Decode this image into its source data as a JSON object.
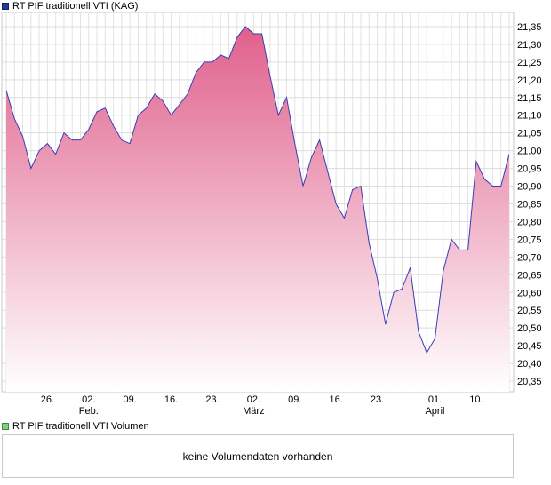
{
  "chart_data": {
    "type": "area",
    "title": "RT PIF traditionell VTI (KAG)",
    "ylim": [
      20.32,
      21.39
    ],
    "y_ticks": [
      "21,35",
      "21,30",
      "21,25",
      "21,20",
      "21,15",
      "21,10",
      "21,05",
      "21,00",
      "20,95",
      "20,90",
      "20,85",
      "20,80",
      "20,75",
      "20,70",
      "20,65",
      "20,60",
      "20,55",
      "20,50",
      "20,45",
      "20,40",
      "20,35"
    ],
    "x_ticks": [
      {
        "day": "26.",
        "month": "",
        "index": 5
      },
      {
        "day": "02.",
        "month": "Feb.",
        "index": 10
      },
      {
        "day": "09.",
        "month": "",
        "index": 15
      },
      {
        "day": "16.",
        "month": "",
        "index": 20
      },
      {
        "day": "23.",
        "month": "",
        "index": 25
      },
      {
        "day": "02.",
        "month": "März",
        "index": 30
      },
      {
        "day": "09.",
        "month": "",
        "index": 35
      },
      {
        "day": "16.",
        "month": "",
        "index": 40
      },
      {
        "day": "23.",
        "month": "",
        "index": 45
      },
      {
        "day": "01.",
        "month": "April",
        "index": 52
      },
      {
        "day": "10.",
        "month": "",
        "index": 57
      }
    ],
    "values": [
      21.17,
      21.09,
      21.04,
      20.95,
      21.0,
      21.02,
      20.99,
      21.05,
      21.03,
      21.03,
      21.06,
      21.11,
      21.12,
      21.07,
      21.03,
      21.02,
      21.1,
      21.12,
      21.16,
      21.14,
      21.1,
      21.13,
      21.16,
      21.22,
      21.25,
      21.25,
      21.27,
      21.26,
      21.32,
      21.35,
      21.33,
      21.33,
      21.21,
      21.1,
      21.15,
      21.02,
      20.9,
      20.98,
      21.03,
      20.94,
      20.85,
      20.81,
      20.89,
      20.9,
      20.74,
      20.64,
      20.51,
      20.6,
      20.61,
      20.67,
      20.49,
      20.43,
      20.47,
      20.66,
      20.75,
      20.72,
      20.72,
      20.97,
      20.92,
      20.9,
      20.9,
      20.99
    ],
    "grid": true,
    "line_color": "#3b3bb8",
    "fill_top_color": "#e0608c",
    "fill_bottom_color": "#ffffff"
  },
  "legend": {
    "main_label": "RT PIF traditionell VTI (KAG)",
    "main_color": "#1f3c9c",
    "volume_label": "RT PIF traditionell VTI Volumen",
    "volume_color": "#7ed37e"
  },
  "volume": {
    "message": "keine Volumendaten vorhanden"
  }
}
